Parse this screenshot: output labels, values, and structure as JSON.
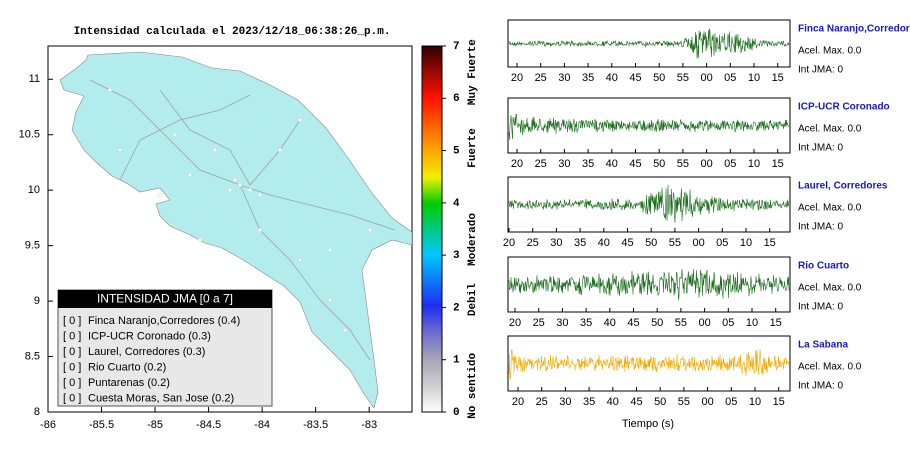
{
  "map": {
    "title": "Intensidad calculada el 2023/12/18_06:38:26_p.m.",
    "xlim": [
      -86,
      -82.6
    ],
    "ylim": [
      8,
      11.3
    ],
    "xticks": [
      -86,
      -85.5,
      -85,
      -84.5,
      -84,
      -83.5,
      -83
    ],
    "yticks": [
      8,
      8.5,
      9,
      9.5,
      10,
      10.5,
      11
    ]
  },
  "colorbar": {
    "lim": [
      0,
      7
    ],
    "ticks": [
      0,
      1,
      2,
      3,
      4,
      5,
      6,
      7
    ],
    "classes": [
      "No sentido",
      "Debil",
      "Moderado",
      "Fuerte",
      "Muy Fuerte"
    ]
  },
  "legend": {
    "title": "INTENSIDAD JMA [0 a 7]",
    "items": [
      {
        "level": "[ 0 ]",
        "station": "Finca Naranjo,Corredores (0.4)"
      },
      {
        "level": "[ 0 ]",
        "station": "ICP-UCR Coronado (0.3)"
      },
      {
        "level": "[ 0 ]",
        "station": "Laurel, Corredores (0.3)"
      },
      {
        "level": "[ 0 ]",
        "station": "Rio Cuarto (0.2)"
      },
      {
        "level": "[ 0 ]",
        "station": "Puntarenas (0.2)"
      },
      {
        "level": "[ 0 ]",
        "station": "Cuesta Moras, San Jose (0.2)"
      }
    ]
  },
  "waveforms": {
    "time_ticks": [
      "20",
      "25",
      "30",
      "35",
      "40",
      "45",
      "50",
      "55",
      "00",
      "05",
      "10",
      "15"
    ],
    "xlabel": "Tiempo (s)",
    "traces": [
      {
        "station": "Finca Naranjo,Corredor",
        "acel": "Acel. Max. 0.0",
        "int": "Int JMA: 0",
        "color": "#1b6e1b"
      },
      {
        "station": "ICP-UCR Coronado",
        "acel": "Acel. Max. 0.0",
        "int": "Int JMA: 0",
        "color": "#1b6e1b"
      },
      {
        "station": "Laurel, Corredores",
        "acel": "Acel. Max. 0.0",
        "int": "Int JMA: 0",
        "color": "#1b6e1b"
      },
      {
        "station": "Rio Cuarto",
        "acel": "Acel. Max. 0.0",
        "int": "Int JMA: 0",
        "color": "#1b6e1b"
      },
      {
        "station": "La Sabana",
        "acel": "Acel. Max. 0.0",
        "int": "Int JMA: 0",
        "color": "#f5a800"
      }
    ]
  }
}
